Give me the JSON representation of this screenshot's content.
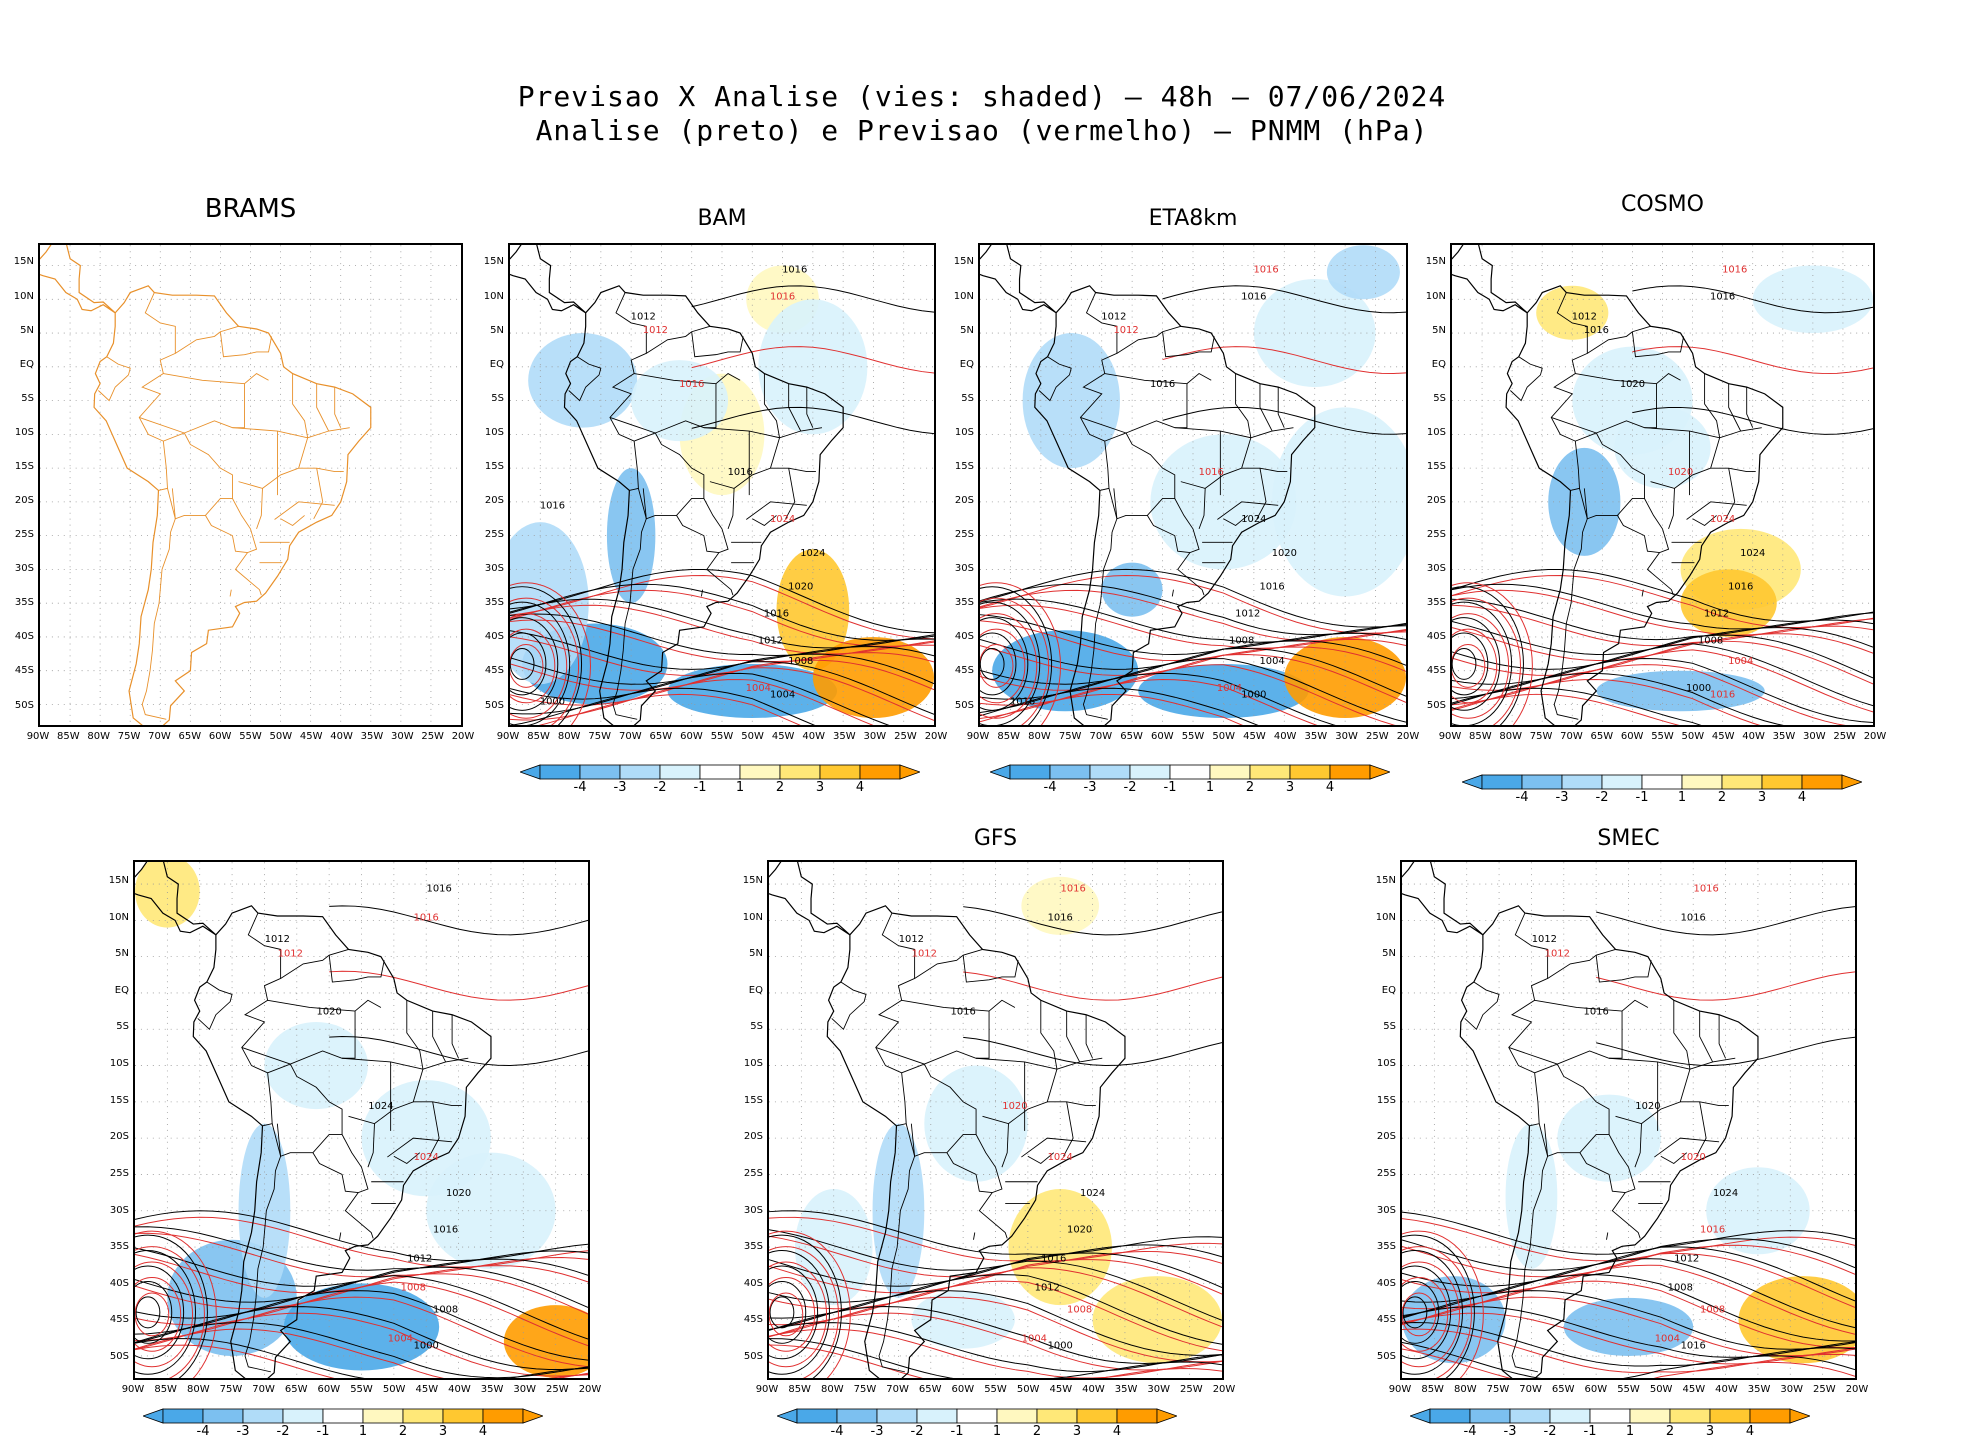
{
  "title_line1": "Previsao X Analise (vies: shaded) — 48h — 07/06/2024",
  "title_line2": "Analise (preto) e Previsao (vermelho) — PNMM (hPa)",
  "colors": {
    "analysis_contour": "#000000",
    "forecast_contour": "#e03030",
    "coastline_brams": "#e8902a",
    "neg4": "#4aa8e8",
    "neg3": "#7cc0f0",
    "neg2": "#b0dcf8",
    "neg1": "#d8f2fc",
    "pos1": "#fff8c0",
    "pos2": "#ffe878",
    "pos3": "#ffc830",
    "pos4": "#ff9c00"
  },
  "lat_labels": [
    "15N",
    "10N",
    "5N",
    "EQ",
    "5S",
    "10S",
    "15S",
    "20S",
    "25S",
    "30S",
    "35S",
    "40S",
    "45S",
    "50S"
  ],
  "lon_labels": [
    "90W",
    "85W",
    "80W",
    "75W",
    "70W",
    "65W",
    "60W",
    "55W",
    "50W",
    "45W",
    "40W",
    "35W",
    "30W",
    "25W",
    "20W"
  ],
  "colorbar_labels": [
    "-4",
    "-3",
    "-2",
    "-1",
    "1",
    "2",
    "3",
    "4"
  ],
  "panels": [
    {
      "id": "brams",
      "title": "BRAMS",
      "colorbar": false,
      "contour_labels": []
    },
    {
      "id": "bam",
      "title": "BAM",
      "colorbar": true,
      "contour_labels": [
        {
          "t": "1016",
          "c": "k"
        },
        {
          "t": "1016",
          "c": "r"
        },
        {
          "t": "1012",
          "c": "k"
        },
        {
          "t": "1012",
          "c": "r"
        },
        {
          "t": "1016",
          "c": "r"
        },
        {
          "t": "1016",
          "c": "k"
        },
        {
          "t": "1024",
          "c": "r"
        },
        {
          "t": "1024",
          "c": "k"
        },
        {
          "t": "1020",
          "c": "k"
        },
        {
          "t": "1016",
          "c": "k"
        },
        {
          "t": "1012",
          "c": "k"
        },
        {
          "t": "1008",
          "c": "k"
        },
        {
          "t": "1004",
          "c": "r"
        },
        {
          "t": "1004",
          "c": "k"
        },
        {
          "t": "1000",
          "c": "k"
        },
        {
          "t": "1016",
          "c": "k"
        }
      ]
    },
    {
      "id": "eta8km",
      "title": "ETA8km",
      "colorbar": true,
      "contour_labels": [
        {
          "t": "1016",
          "c": "r"
        },
        {
          "t": "1016",
          "c": "k"
        },
        {
          "t": "1012",
          "c": "k"
        },
        {
          "t": "1012",
          "c": "r"
        },
        {
          "t": "1016",
          "c": "k"
        },
        {
          "t": "1016",
          "c": "r"
        },
        {
          "t": "1024",
          "c": "k"
        },
        {
          "t": "1020",
          "c": "k"
        },
        {
          "t": "1016",
          "c": "k"
        },
        {
          "t": "1012",
          "c": "k"
        },
        {
          "t": "1008",
          "c": "k"
        },
        {
          "t": "1004",
          "c": "k"
        },
        {
          "t": "1004",
          "c": "r"
        },
        {
          "t": "1000",
          "c": "k"
        },
        {
          "t": "1016",
          "c": "k"
        }
      ]
    },
    {
      "id": "cosmo",
      "title": "COSMO",
      "colorbar": true,
      "contour_labels": [
        {
          "t": "1016",
          "c": "r"
        },
        {
          "t": "1016",
          "c": "k"
        },
        {
          "t": "1012",
          "c": "k"
        },
        {
          "t": "1016",
          "c": "k"
        },
        {
          "t": "1020",
          "c": "k"
        },
        {
          "t": "1020",
          "c": "r"
        },
        {
          "t": "1024",
          "c": "r"
        },
        {
          "t": "1024",
          "c": "k"
        },
        {
          "t": "1016",
          "c": "k"
        },
        {
          "t": "1012",
          "c": "k"
        },
        {
          "t": "1008",
          "c": "k"
        },
        {
          "t": "1004",
          "c": "r"
        },
        {
          "t": "1000",
          "c": "k"
        },
        {
          "t": "1016",
          "c": "r"
        }
      ]
    },
    {
      "id": "unnamed",
      "title": "",
      "colorbar": true,
      "contour_labels": [
        {
          "t": "1016",
          "c": "k"
        },
        {
          "t": "1016",
          "c": "r"
        },
        {
          "t": "1012",
          "c": "k"
        },
        {
          "t": "1012",
          "c": "r"
        },
        {
          "t": "1020",
          "c": "k"
        },
        {
          "t": "1024",
          "c": "k"
        },
        {
          "t": "1024",
          "c": "r"
        },
        {
          "t": "1020",
          "c": "k"
        },
        {
          "t": "1016",
          "c": "k"
        },
        {
          "t": "1012",
          "c": "k"
        },
        {
          "t": "1008",
          "c": "r"
        },
        {
          "t": "1008",
          "c": "k"
        },
        {
          "t": "1004",
          "c": "r"
        },
        {
          "t": "1000",
          "c": "k"
        }
      ]
    },
    {
      "id": "gfs",
      "title": "GFS",
      "colorbar": true,
      "contour_labels": [
        {
          "t": "1016",
          "c": "r"
        },
        {
          "t": "1016",
          "c": "k"
        },
        {
          "t": "1012",
          "c": "k"
        },
        {
          "t": "1012",
          "c": "r"
        },
        {
          "t": "1016",
          "c": "k"
        },
        {
          "t": "1020",
          "c": "r"
        },
        {
          "t": "1024",
          "c": "r"
        },
        {
          "t": "1024",
          "c": "k"
        },
        {
          "t": "1020",
          "c": "k"
        },
        {
          "t": "1016",
          "c": "k"
        },
        {
          "t": "1012",
          "c": "k"
        },
        {
          "t": "1008",
          "c": "r"
        },
        {
          "t": "1004",
          "c": "r"
        },
        {
          "t": "1000",
          "c": "k"
        }
      ]
    },
    {
      "id": "smec",
      "title": "SMEC",
      "colorbar": true,
      "contour_labels": [
        {
          "t": "1016",
          "c": "r"
        },
        {
          "t": "1016",
          "c": "k"
        },
        {
          "t": "1012",
          "c": "k"
        },
        {
          "t": "1012",
          "c": "r"
        },
        {
          "t": "1016",
          "c": "k"
        },
        {
          "t": "1020",
          "c": "k"
        },
        {
          "t": "1020",
          "c": "r"
        },
        {
          "t": "1024",
          "c": "k"
        },
        {
          "t": "1016",
          "c": "r"
        },
        {
          "t": "1012",
          "c": "k"
        },
        {
          "t": "1008",
          "c": "k"
        },
        {
          "t": "1008",
          "c": "r"
        },
        {
          "t": "1004",
          "c": "r"
        },
        {
          "t": "1016",
          "c": "k"
        }
      ]
    }
  ]
}
